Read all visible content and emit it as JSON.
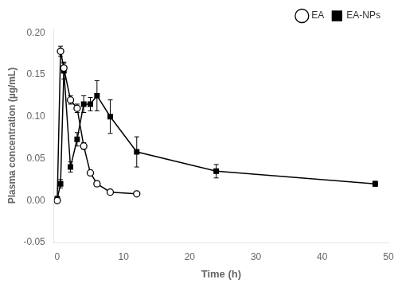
{
  "chart_data": {
    "type": "line",
    "xlabel": "Time (h)",
    "ylabel": "Plasma concentration (µg/mL)",
    "xlim": [
      -0.5,
      50
    ],
    "ylim": [
      -0.05,
      0.205
    ],
    "xticks": [
      0,
      10,
      20,
      30,
      40,
      50
    ],
    "yticks": [
      -0.05,
      {
        "value": 0,
        "label": "0.00"
      },
      0.05,
      {
        "value": 0.1,
        "label": "0.10"
      },
      0.15,
      {
        "value": 0.2,
        "label": "0.20"
      }
    ],
    "grid": false,
    "legend": "upper right",
    "series": [
      {
        "name": "EA",
        "color": "#000000",
        "marker": "open_circle",
        "x": [
          0,
          0.5,
          1,
          2,
          3,
          4,
          5,
          6,
          8,
          12
        ],
        "values": [
          0.0,
          0.178,
          0.158,
          0.12,
          0.11,
          0.065,
          0.033,
          0.02,
          0.01,
          0.008
        ],
        "errors": [
          0.003,
          0.006,
          0.006,
          0.005,
          0.005,
          0.004,
          0.003,
          0.003,
          0.002,
          0.002
        ]
      },
      {
        "name": "EA-NPs",
        "color": "#000000",
        "marker": "filled_square",
        "x": [
          0,
          0.5,
          1,
          2,
          3,
          4,
          5,
          6,
          8,
          12,
          24,
          48
        ],
        "values": [
          0.002,
          0.02,
          0.155,
          0.04,
          0.073,
          0.115,
          0.115,
          0.125,
          0.1,
          0.058,
          0.035,
          0.02
        ],
        "errors": [
          0.003,
          0.005,
          0.01,
          0.006,
          0.008,
          0.01,
          0.008,
          0.018,
          0.02,
          0.018,
          0.008,
          0.003
        ]
      }
    ]
  }
}
